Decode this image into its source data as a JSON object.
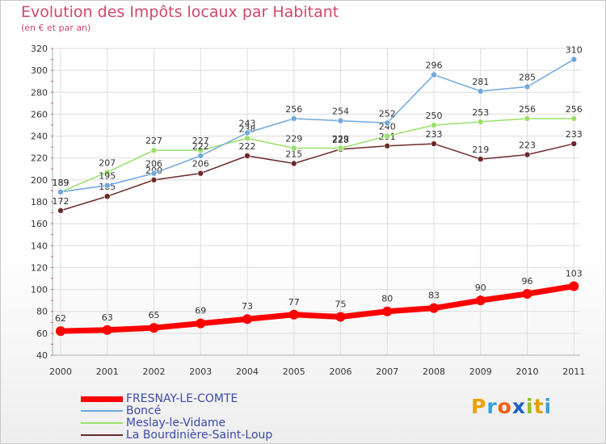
{
  "title": "Evolution des Impôts locaux par Habitant",
  "subtitle": "(en € et par an)",
  "logo": {
    "text": "Proxiti",
    "letters": [
      "P",
      "r",
      "o",
      "x",
      "i",
      "t",
      "i"
    ],
    "colors": [
      "#f0a000",
      "#3aa0e0",
      "#f06010",
      "#2060c0",
      "#90c020",
      "#e0a000",
      "#3aa0e0"
    ]
  },
  "chart_data": {
    "type": "line",
    "title": "Evolution des Impôts locaux par Habitant",
    "ylabel": "(en € et par an)",
    "xlabel": "",
    "categories": [
      "2000",
      "2001",
      "2002",
      "2003",
      "2004",
      "2005",
      "2006",
      "2007",
      "2008",
      "2009",
      "2010",
      "2011"
    ],
    "ylim": [
      40,
      320
    ],
    "yticks": [
      40,
      60,
      80,
      100,
      120,
      140,
      160,
      180,
      200,
      220,
      240,
      260,
      280,
      300,
      320
    ],
    "grid": true,
    "series": [
      {
        "name": "FRESNAY-LE-COMTE",
        "color": "#ff0000",
        "values": [
          62,
          63,
          65,
          69,
          73,
          77,
          75,
          80,
          83,
          90,
          96,
          103
        ]
      },
      {
        "name": "Boncé",
        "color": "#6fa8dc",
        "values": [
          189,
          195,
          206,
          222,
          243,
          256,
          254,
          252,
          296,
          281,
          285,
          310
        ]
      },
      {
        "name": "Meslay-le-Vidame",
        "color": "#99e06a",
        "values": [
          189,
          207,
          227,
          227,
          238,
          229,
          229,
          240,
          250,
          253,
          256,
          256
        ]
      },
      {
        "name": "La Bourdinière-Saint-Loup",
        "color": "#6b2b2b",
        "values": [
          172,
          185,
          200,
          206,
          222,
          215,
          228,
          231,
          233,
          219,
          223,
          233
        ]
      }
    ]
  }
}
